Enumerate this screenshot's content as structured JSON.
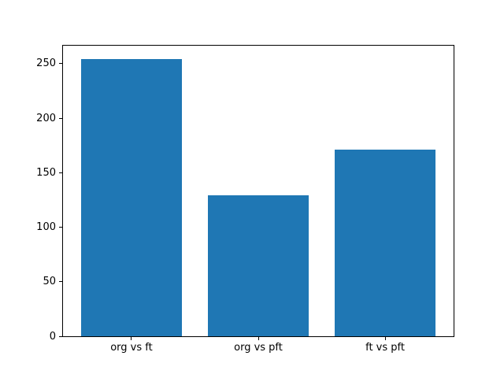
{
  "chart_data": {
    "type": "bar",
    "categories": [
      "org vs ft",
      "org vs pft",
      "ft vs pft"
    ],
    "values": [
      254,
      129,
      171
    ],
    "title": "",
    "xlabel": "",
    "ylabel": "",
    "yticks": [
      0,
      50,
      100,
      150,
      200,
      250
    ],
    "ylim": [
      0,
      266.7
    ],
    "xlim": [
      -0.54,
      2.54
    ],
    "bar_width": 0.8,
    "grid": false,
    "legend": null,
    "bar_color": "#1f77b4",
    "axis_color": "#000000",
    "background_color": "#ffffff"
  }
}
